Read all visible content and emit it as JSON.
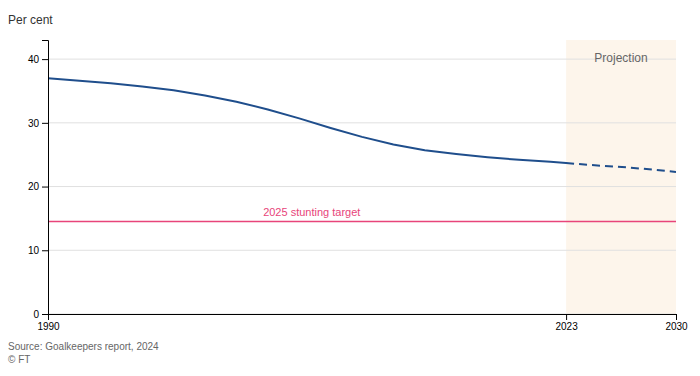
{
  "chart_data": {
    "type": "line",
    "y_label": "Per cent",
    "source": "Source: Goalkeepers report, 2024\n© FT",
    "series": [
      {
        "x": [
          1990,
          1992,
          1994,
          1996,
          1998,
          2000,
          2002,
          2004,
          2006,
          2008,
          2010,
          2012,
          2014,
          2016,
          2018,
          2020,
          2022,
          2023
        ],
        "values": [
          37.0,
          36.6,
          36.2,
          35.7,
          35.1,
          34.3,
          33.3,
          32.1,
          30.7,
          29.2,
          27.8,
          26.6,
          25.7,
          25.1,
          24.6,
          24.2,
          23.9,
          23.7
        ],
        "color": "#1f4e8c",
        "line_style": "solid"
      },
      {
        "x": [
          2023,
          2025,
          2027,
          2030
        ],
        "values": [
          23.7,
          23.3,
          23.0,
          22.3
        ],
        "color": "#1f4e8c",
        "line_style": "dashed"
      }
    ],
    "annotations": [
      {
        "type": "hline",
        "value": 14.5,
        "label": "2025 stunting target",
        "color": "#e8447a"
      },
      {
        "type": "span",
        "x": [
          2023,
          2030
        ],
        "label": "Projection",
        "color": "#fdf5eb"
      }
    ],
    "xlim": [
      1990,
      2030
    ],
    "xticks": [
      1990,
      2023,
      2030
    ],
    "ylim": [
      0,
      43
    ],
    "yticks": [
      0,
      10,
      20,
      30,
      40
    ],
    "grid": true
  }
}
